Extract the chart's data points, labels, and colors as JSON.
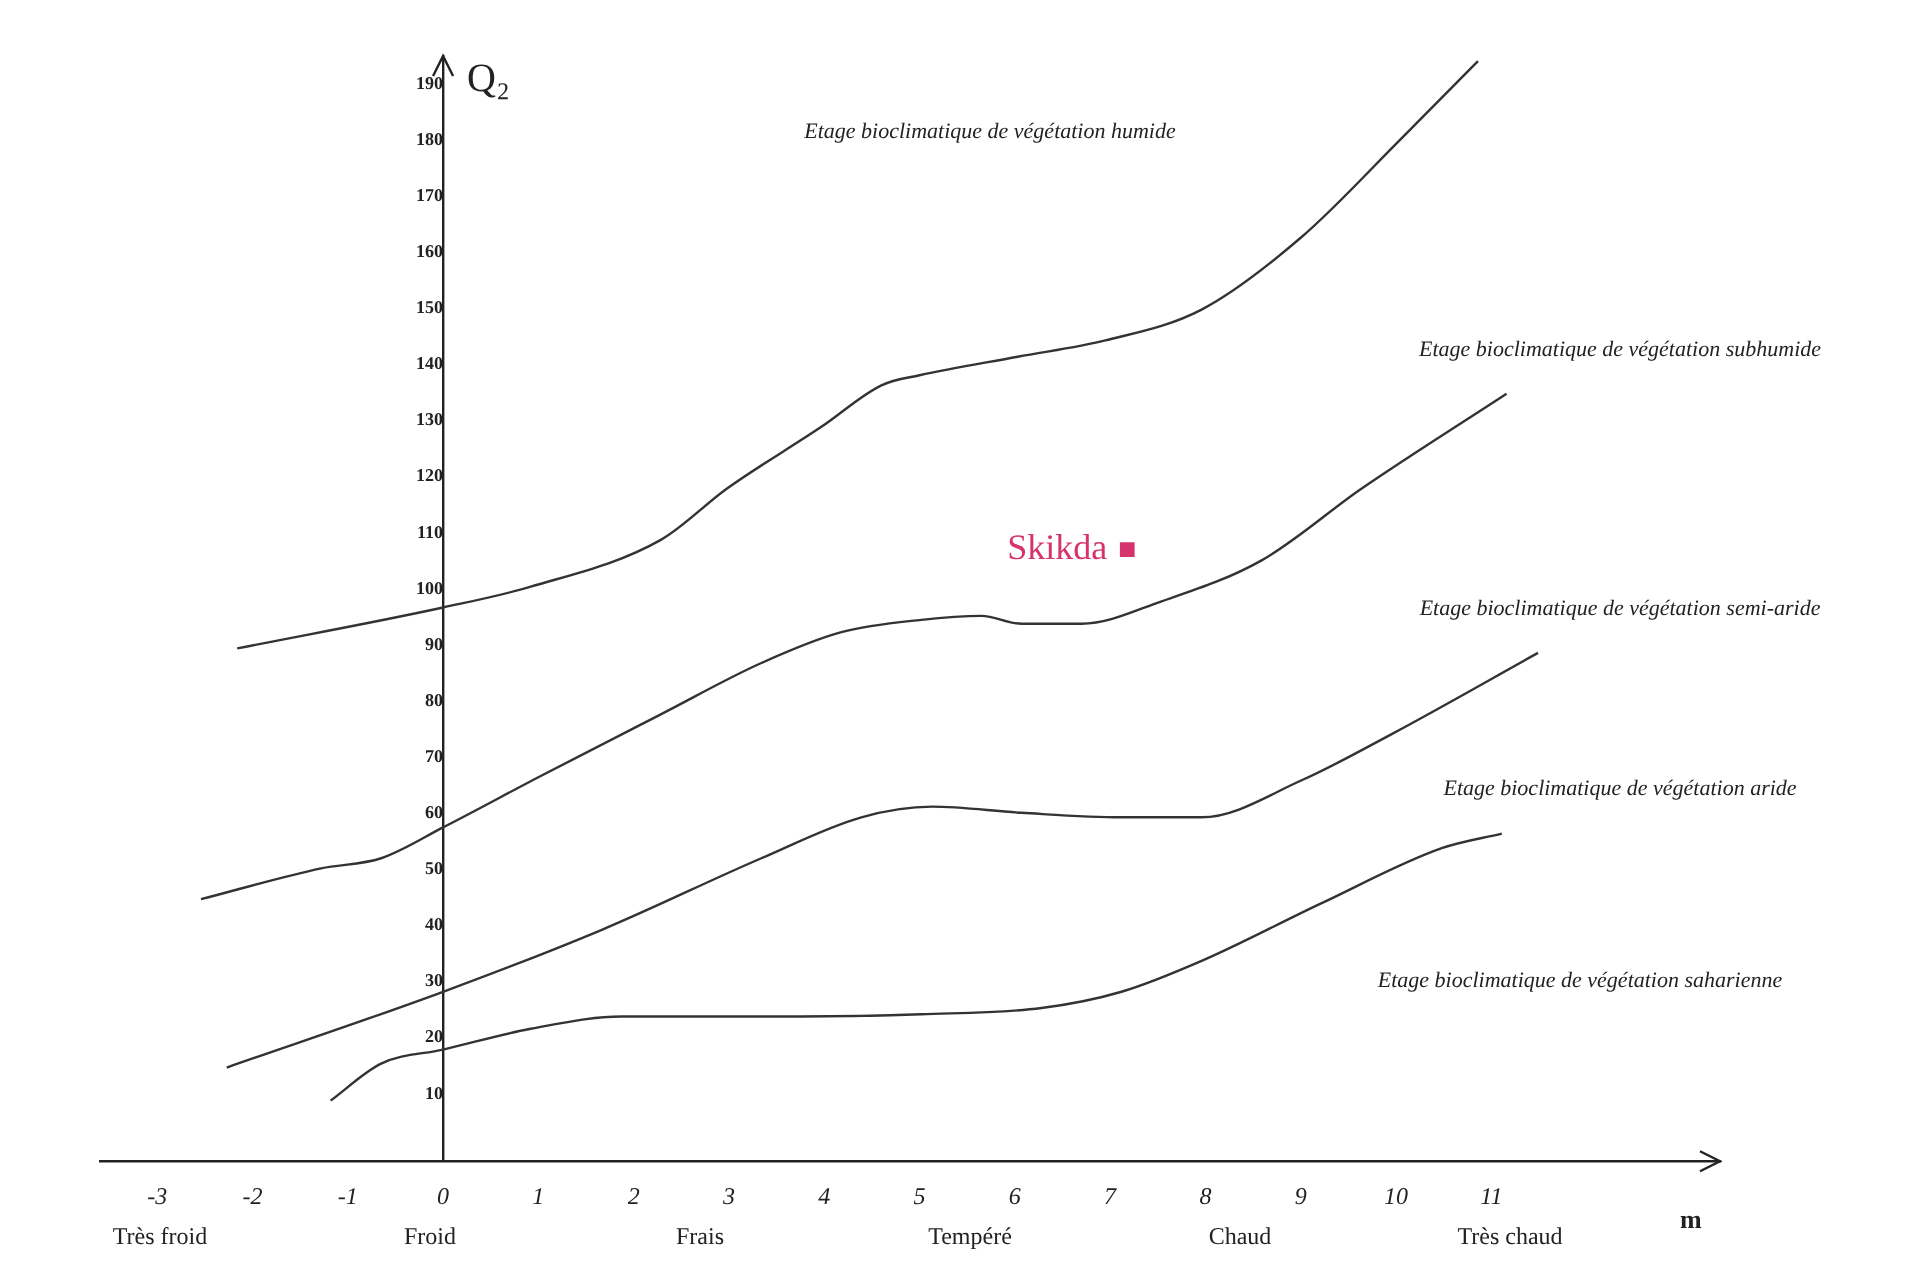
{
  "chart_data": {
    "type": "line",
    "xlabel": "m",
    "ylabel": "Q₂",
    "xlim": [
      -3.6,
      13.4
    ],
    "ylim": [
      -2,
      195
    ],
    "xticks": [
      -3,
      -2,
      -1,
      0,
      1,
      2,
      3,
      4,
      5,
      6,
      7,
      8,
      9,
      10,
      11
    ],
    "yticks": [
      10,
      20,
      30,
      40,
      50,
      60,
      70,
      80,
      90,
      100,
      110,
      120,
      130,
      140,
      150,
      160,
      170,
      180,
      190
    ],
    "grid": false,
    "legend": false,
    "marker": "none",
    "line_style": "solid",
    "series": [
      {
        "color": "#333333",
        "x": [
          -2.16,
          0,
          0.92,
          2.29,
          2.98,
          3.97,
          4.6,
          5.0,
          6.03,
          6.95,
          7.96,
          9.0,
          10.05,
          10.86
        ],
        "values": [
          89.4,
          96.7,
          100.4,
          108.8,
          117.9,
          128.9,
          136.3,
          138.1,
          141.4,
          144.3,
          149.8,
          162.6,
          180.2,
          194.1
        ]
      },
      {
        "color": "#333333",
        "x": [
          -2.54,
          -1.28,
          -0.65,
          0,
          1.03,
          2.29,
          3.34,
          4.18,
          5.02,
          5.65,
          6.07,
          6.7,
          7.54,
          8.59,
          9.64,
          11.16
        ],
        "values": [
          44.7,
          50.2,
          52.0,
          57.5,
          66.7,
          77.7,
          86.8,
          92.3,
          94.5,
          95.2,
          93.8,
          93.8,
          97.8,
          105.1,
          117.9,
          134.8
        ]
      },
      {
        "color": "#333333",
        "x": [
          -2.27,
          0,
          1.66,
          3.34,
          4.39,
          5.13,
          6.07,
          7.12,
          7.96,
          9.01,
          9.94,
          11.49
        ],
        "values": [
          14.7,
          28.2,
          39.2,
          52.0,
          59.3,
          61.2,
          60.1,
          59.3,
          59.3,
          65.9,
          74.0,
          88.6
        ]
      },
      {
        "color": "#333333",
        "x": [
          -1.18,
          -0.65,
          0,
          0.92,
          1.87,
          3.76,
          5.02,
          6.28,
          7.12,
          7.96,
          9.22,
          10.48,
          11.11
        ],
        "values": [
          8.8,
          15.4,
          17.9,
          21.6,
          23.8,
          23.8,
          24.2,
          25.3,
          28.2,
          33.7,
          44.0,
          53.8,
          56.4
        ]
      },
      {
        "type": "scatter",
        "name": "Skikda",
        "color": "#d6336c",
        "marker": "square",
        "x": [
          7.18
        ],
        "values": [
          107.0
        ]
      }
    ],
    "annotations": [
      "Etage bioclimatique de végétation humide",
      "Etage bioclimatique de végétation subhumide",
      "Etage bioclimatique de végétation semi-aride",
      "Etage bioclimatique de végétation aride",
      "Etage bioclimatique de végétation saharienne",
      "Très froid",
      "Froid",
      "Frais",
      "Tempéré",
      "Chaud",
      "Très chaud"
    ]
  }
}
